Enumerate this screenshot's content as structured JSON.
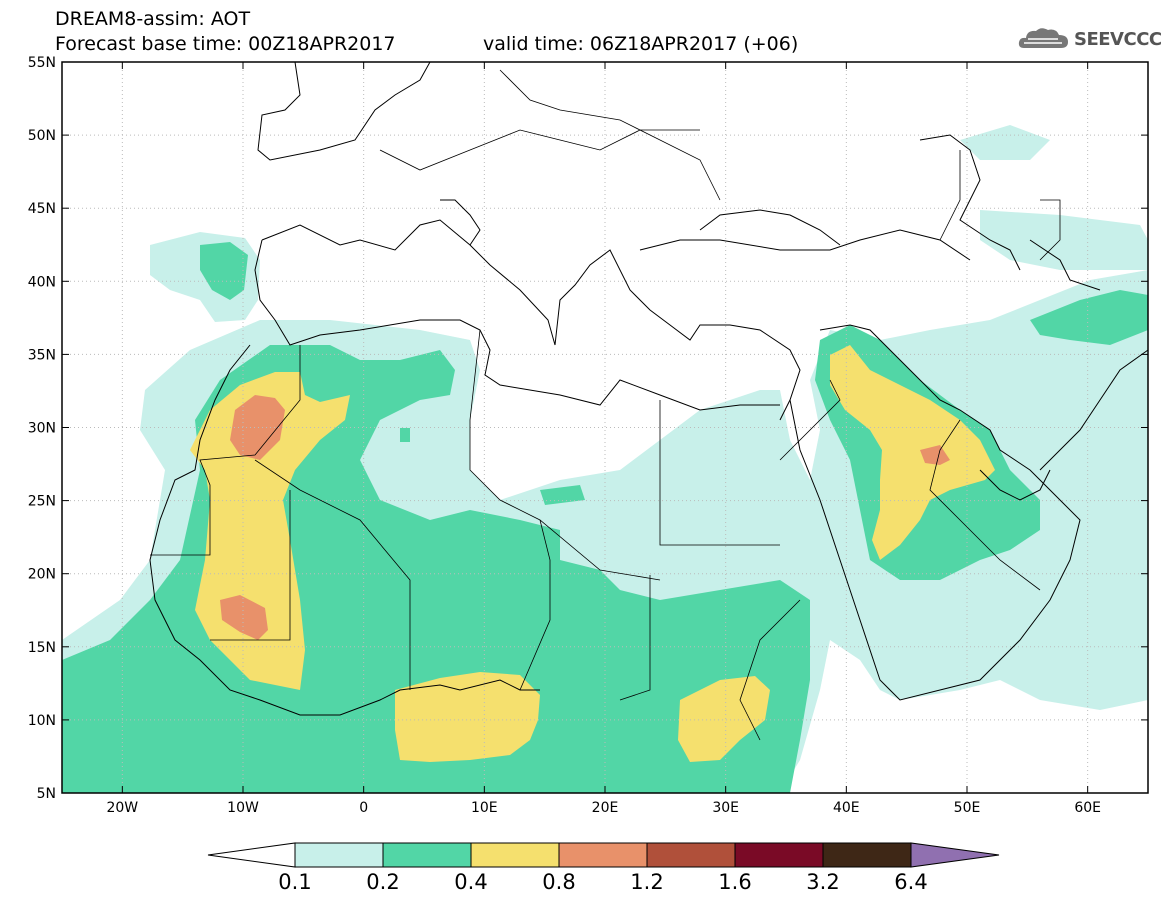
{
  "header": {
    "title_line1": "DREAM8-assim: AOT",
    "title_line2": "Forecast base time: 00Z18APR2017",
    "valid_time": "valid time: 06Z18APR2017 (+06)",
    "logo": "SEEVCCC"
  },
  "map": {
    "lat_labels": [
      "55N",
      "50N",
      "45N",
      "40N",
      "35N",
      "30N",
      "25N",
      "20N",
      "15N",
      "10N",
      "5N"
    ],
    "lon_labels": [
      "20W",
      "10W",
      "0",
      "10E",
      "20E",
      "30E",
      "40E",
      "50E",
      "60E"
    ],
    "lat_range": [
      5,
      55
    ],
    "lon_range": [
      -25,
      65
    ]
  },
  "legend": {
    "labels": [
      "0.1",
      "0.2",
      "0.4",
      "0.8",
      "1.2",
      "1.6",
      "3.2",
      "6.4"
    ],
    "colors": [
      "#ffffff",
      "#c8f0ea",
      "#52d6a6",
      "#f5e06e",
      "#e8916a",
      "#b0503a",
      "#7a0a26",
      "#3e2716",
      "#9070b0"
    ]
  }
}
